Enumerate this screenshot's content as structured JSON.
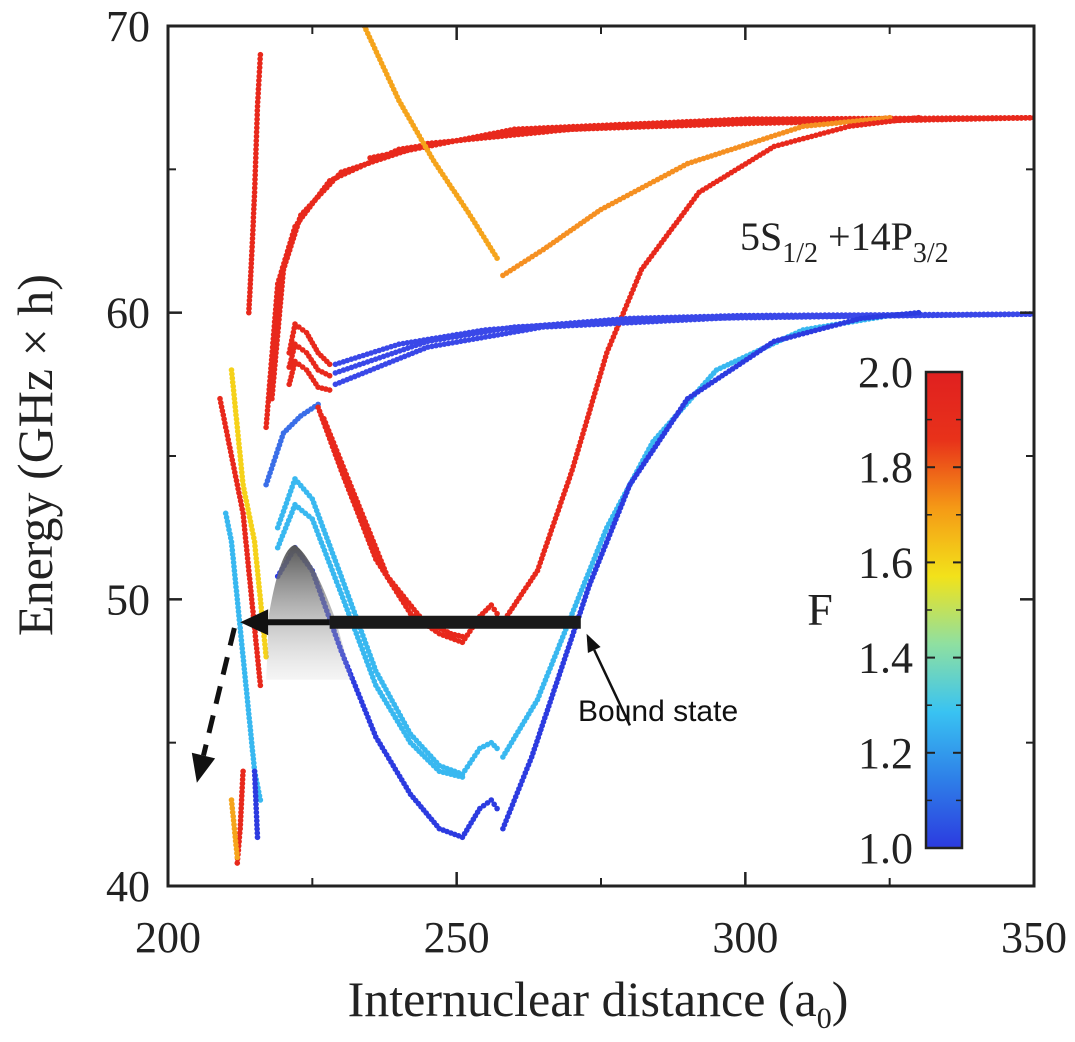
{
  "chart_data": {
    "type": "scatter",
    "xlabel": "Internuclear distance (a",
    "xlabel_sub": "0",
    "xlabel_end": ")",
    "ylabel": "Energy (GHz × h)",
    "xlim": [
      200,
      350
    ],
    "ylim": [
      40,
      70
    ],
    "xticks": [
      "200",
      "250",
      "300",
      "350"
    ],
    "yticks": [
      "40",
      "50",
      "60",
      "70"
    ],
    "annotation": {
      "base": [
        "5S",
        " +14P"
      ],
      "subs": [
        "1/2",
        "3/2"
      ]
    },
    "bound_state_label": "Bound state",
    "colorbar": {
      "label": "F",
      "min": 1.0,
      "max": 2.0,
      "ticks": [
        "1.0",
        "1.2",
        "1.4",
        "1.6",
        "1.8",
        "2.0"
      ],
      "colormap": [
        "#2c3be0",
        "#2e7fe8",
        "#39c3f2",
        "#8fe0a0",
        "#f2e21a",
        "#f59a16",
        "#e8321a",
        "#e02020"
      ]
    },
    "series": [
      {
        "color": "#e8291c",
        "points": [
          [
            217,
            56
          ],
          [
            219,
            61
          ],
          [
            222,
            63
          ],
          [
            228,
            64.6
          ],
          [
            240,
            65.7
          ],
          [
            260,
            66.3
          ],
          [
            300,
            66.7
          ],
          [
            350,
            66.8
          ]
        ]
      },
      {
        "color": "#e8291c",
        "points": [
          [
            218,
            57
          ],
          [
            220,
            61.5
          ],
          [
            223,
            63.4
          ],
          [
            230,
            64.9
          ],
          [
            245,
            65.9
          ],
          [
            270,
            66.4
          ],
          [
            300,
            66.6
          ],
          [
            350,
            66.8
          ]
        ]
      },
      {
        "color": "#e8291c",
        "points": [
          [
            235,
            65.4
          ],
          [
            260,
            66.4
          ],
          [
            300,
            66.75
          ],
          [
            350,
            66.8
          ]
        ]
      },
      {
        "color": "#f5a41c",
        "points": [
          [
            234,
            70
          ],
          [
            240,
            67.4
          ],
          [
            246,
            65.3
          ],
          [
            252,
            63.5
          ],
          [
            257,
            61.9
          ]
        ]
      },
      {
        "color": "#f59022",
        "points": [
          [
            258,
            61.3
          ],
          [
            265,
            62.2
          ],
          [
            275,
            63.6
          ],
          [
            290,
            65.2
          ],
          [
            310,
            66.5
          ],
          [
            325,
            66.8
          ]
        ]
      },
      {
        "color": "#e8291c",
        "points": [
          [
            258,
            49.2
          ],
          [
            264,
            51
          ],
          [
            270,
            54.5
          ],
          [
            276,
            58.6
          ],
          [
            282,
            61.5
          ],
          [
            292,
            64.2
          ],
          [
            305,
            65.8
          ],
          [
            318,
            66.5
          ],
          [
            330,
            66.8
          ]
        ]
      },
      {
        "color": "#3a48e8",
        "points": [
          [
            229,
            58.2
          ],
          [
            240,
            58.9
          ],
          [
            255,
            59.4
          ],
          [
            280,
            59.8
          ],
          [
            300,
            59.9
          ],
          [
            350,
            59.95
          ]
        ]
      },
      {
        "color": "#3a48e8",
        "points": [
          [
            229,
            57.9
          ],
          [
            245,
            59.0
          ],
          [
            260,
            59.5
          ],
          [
            290,
            59.8
          ],
          [
            350,
            59.95
          ]
        ]
      },
      {
        "color": "#3a48e8",
        "points": [
          [
            229,
            57.5
          ],
          [
            245,
            58.8
          ],
          [
            265,
            59.5
          ],
          [
            300,
            59.85
          ],
          [
            350,
            59.95
          ]
        ]
      },
      {
        "color": "#e8291c",
        "points": [
          [
            221,
            58.6
          ],
          [
            222,
            59.6
          ],
          [
            224,
            59.3
          ],
          [
            226,
            58.6
          ],
          [
            228,
            58.2
          ]
        ]
      },
      {
        "color": "#e8291c",
        "points": [
          [
            221,
            58.1
          ],
          [
            222,
            58.9
          ],
          [
            224,
            58.6
          ],
          [
            226,
            58.0
          ],
          [
            228,
            57.8
          ]
        ]
      },
      {
        "color": "#e8291c",
        "points": [
          [
            221,
            57.5
          ],
          [
            222,
            58.3
          ],
          [
            224,
            58.0
          ],
          [
            226,
            57.4
          ],
          [
            228,
            57.3
          ]
        ]
      },
      {
        "color": "#3a6ee8",
        "points": [
          [
            217,
            54
          ],
          [
            220,
            55.8
          ],
          [
            223,
            56.4
          ],
          [
            226,
            56.8
          ]
        ]
      },
      {
        "color": "#e8291c",
        "points": [
          [
            226,
            56.7
          ],
          [
            230,
            54.5
          ],
          [
            236,
            51.4
          ],
          [
            242,
            49.5
          ],
          [
            247,
            48.8
          ],
          [
            251,
            48.5
          ],
          [
            254,
            49.4
          ],
          [
            256,
            49.8
          ],
          [
            257,
            49.5
          ]
        ]
      },
      {
        "color": "#e8291c",
        "points": [
          [
            227,
            56.3
          ],
          [
            232,
            53.8
          ],
          [
            238,
            50.8
          ],
          [
            244,
            49.3
          ],
          [
            249,
            48.8
          ],
          [
            251,
            48.7
          ]
        ]
      },
      {
        "color": "#39b8f0",
        "points": [
          [
            219,
            52.5
          ],
          [
            222,
            54.2
          ],
          [
            225,
            53.5
          ],
          [
            230,
            50.8
          ],
          [
            236,
            47.5
          ],
          [
            242,
            45.3
          ],
          [
            247,
            44.2
          ],
          [
            251,
            43.9
          ],
          [
            254,
            44.8
          ],
          [
            256,
            45.0
          ],
          [
            257,
            44.8
          ]
        ]
      },
      {
        "color": "#39b8f0",
        "points": [
          [
            219,
            51.8
          ],
          [
            222,
            53.3
          ],
          [
            225,
            52.8
          ],
          [
            230,
            50.2
          ],
          [
            236,
            47.0
          ],
          [
            242,
            45.0
          ],
          [
            247,
            44.0
          ],
          [
            251,
            43.8
          ]
        ]
      },
      {
        "color": "#39b8f0",
        "points": [
          [
            258,
            44.5
          ],
          [
            264,
            46.5
          ],
          [
            270,
            49.5
          ],
          [
            276,
            52.5
          ],
          [
            284,
            55.5
          ],
          [
            295,
            58
          ],
          [
            310,
            59.4
          ],
          [
            325,
            59.9
          ]
        ]
      },
      {
        "color": "#2c3be0",
        "points": [
          [
            219,
            50.8
          ],
          [
            222,
            51.8
          ],
          [
            225,
            51.0
          ],
          [
            230,
            48.2
          ],
          [
            236,
            45.2
          ],
          [
            242,
            43.2
          ],
          [
            247,
            42.0
          ],
          [
            251,
            41.7
          ],
          [
            254,
            42.7
          ],
          [
            256,
            43.0
          ],
          [
            257,
            42.7
          ]
        ]
      },
      {
        "color": "#2c3be0",
        "points": [
          [
            258,
            42.0
          ],
          [
            263,
            44.5
          ],
          [
            268,
            47.5
          ],
          [
            273,
            50.5
          ],
          [
            280,
            54
          ],
          [
            290,
            57
          ],
          [
            305,
            59
          ],
          [
            320,
            59.8
          ],
          [
            330,
            60
          ]
        ]
      },
      {
        "color": "#e8291c",
        "points": [
          [
            209,
            57
          ],
          [
            211,
            55
          ],
          [
            213,
            53
          ],
          [
            214,
            51
          ],
          [
            215,
            49
          ],
          [
            216,
            47
          ]
        ]
      },
      {
        "color": "#39b8f0",
        "points": [
          [
            210,
            53
          ],
          [
            211,
            52
          ],
          [
            212,
            50
          ],
          [
            213,
            48
          ],
          [
            214,
            46
          ],
          [
            215,
            44
          ],
          [
            216,
            43
          ]
        ]
      },
      {
        "color": "#f5d21a",
        "points": [
          [
            211,
            58
          ],
          [
            212,
            56
          ],
          [
            213,
            54
          ],
          [
            215,
            52
          ],
          [
            216,
            50
          ],
          [
            217,
            48
          ]
        ]
      },
      {
        "color": "#e8291c",
        "points": [
          [
            216,
            69
          ],
          [
            215.5,
            67.2
          ],
          [
            215,
            64.2
          ],
          [
            214.5,
            62
          ],
          [
            214,
            60
          ]
        ]
      },
      {
        "color": "#e8291c",
        "points": [
          [
            213,
            44
          ],
          [
            212.5,
            42
          ],
          [
            212,
            40.8
          ]
        ]
      },
      {
        "color": "#f5a41c",
        "points": [
          [
            211,
            43
          ],
          [
            212,
            41
          ]
        ]
      },
      {
        "color": "#2c3be0",
        "points": [
          [
            215,
            44
          ],
          [
            215.5,
            41.7
          ]
        ]
      }
    ],
    "bound_state": {
      "x_start": 228,
      "x_end": 271.5,
      "y": 49.2
    },
    "arrow_left": {
      "x_start": 228,
      "x_end": 212.5,
      "y": 49.2
    },
    "dashed_arrow": {
      "from": [
        211.5,
        49
      ],
      "to": [
        205,
        43.6
      ]
    },
    "bound_pointer": {
      "from": [
        280,
        45.6
      ],
      "to": [
        272.5,
        48.8
      ]
    }
  }
}
